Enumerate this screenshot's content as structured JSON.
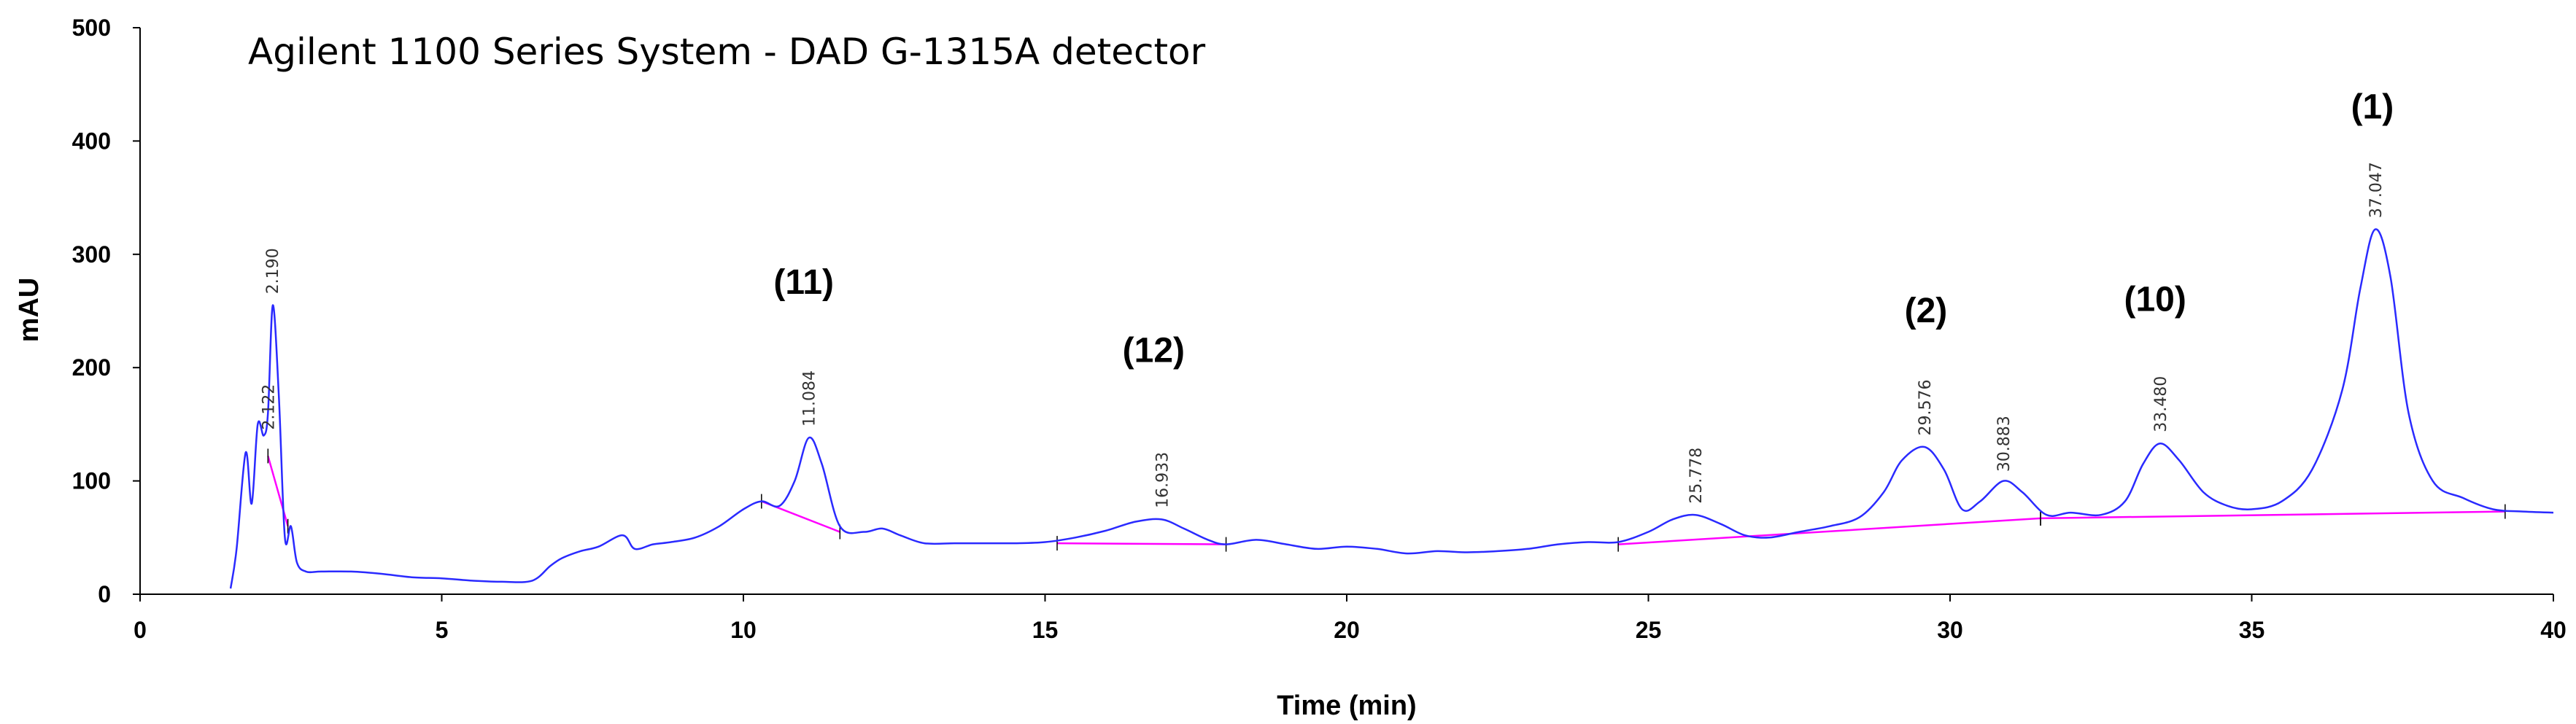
{
  "chart_data": {
    "type": "line",
    "title": "Agilent 1100 Series System  - DAD G-1315A detector",
    "xlabel": "Time (min)",
    "ylabel": "mAU",
    "xlim": [
      0,
      40
    ],
    "ylim": [
      0,
      500
    ],
    "x_ticks": [
      0,
      5,
      10,
      15,
      20,
      25,
      30,
      35,
      40
    ],
    "y_ticks": [
      0,
      100,
      200,
      300,
      400,
      500
    ],
    "grid": false,
    "colors": {
      "trace": "#2a2aff",
      "baseline": "#ff00ff"
    },
    "series": [
      {
        "x": [
          1.5,
          1.6,
          1.75,
          1.85,
          1.95,
          2.05,
          2.12,
          2.2,
          2.3,
          2.4,
          2.5,
          2.6,
          2.75,
          3.0,
          3.5,
          4.0,
          4.5,
          5.0,
          5.5,
          6.0,
          6.5,
          6.8,
          7.0,
          7.3,
          7.6,
          8.0,
          8.2,
          8.5,
          8.8,
          9.2,
          9.6,
          10.0,
          10.3,
          10.6,
          10.85,
          11.084,
          11.3,
          11.6,
          12.0,
          12.3,
          12.6,
          13.0,
          13.5,
          14.0,
          14.5,
          15.0,
          15.5,
          16.0,
          16.5,
          16.933,
          17.3,
          17.7,
          18.0,
          18.5,
          19.0,
          19.5,
          20.0,
          20.5,
          21.0,
          21.5,
          22.0,
          22.5,
          23.0,
          23.5,
          24.0,
          24.5,
          25.0,
          25.4,
          25.778,
          26.2,
          26.6,
          27.0,
          27.5,
          28.0,
          28.5,
          28.9,
          29.2,
          29.576,
          29.9,
          30.2,
          30.5,
          30.883,
          31.2,
          31.6,
          32.0,
          32.5,
          32.9,
          33.2,
          33.48,
          33.8,
          34.2,
          34.6,
          35.0,
          35.5,
          36.0,
          36.5,
          36.8,
          37.047,
          37.3,
          37.6,
          38.0,
          38.5,
          39.0,
          39.5,
          40.0
        ],
        "values": [
          5,
          40,
          125,
          80,
          150,
          140,
          160,
          255,
          175,
          50,
          60,
          28,
          20,
          20,
          20,
          18,
          15,
          14,
          12,
          11,
          12,
          25,
          32,
          38,
          42,
          52,
          40,
          44,
          46,
          50,
          60,
          75,
          82,
          78,
          100,
          138,
          115,
          60,
          55,
          58,
          52,
          45,
          45,
          45,
          45,
          46,
          50,
          56,
          64,
          66,
          58,
          48,
          44,
          48,
          44,
          40,
          42,
          40,
          36,
          38,
          37,
          38,
          40,
          44,
          46,
          46,
          55,
          66,
          70,
          62,
          52,
          50,
          55,
          60,
          68,
          90,
          118,
          130,
          110,
          75,
          82,
          100,
          90,
          70,
          72,
          70,
          82,
          115,
          133,
          118,
          90,
          78,
          75,
          82,
          110,
          180,
          270,
          322,
          280,
          160,
          100,
          85,
          75,
          73,
          72
        ]
      }
    ],
    "baselines": [
      {
        "x": [
          2.12,
          2.45
        ],
        "values": [
          122,
          60
        ]
      },
      {
        "x": [
          10.3,
          11.6
        ],
        "values": [
          82,
          55
        ]
      },
      {
        "x": [
          15.2,
          18.0
        ],
        "values": [
          45,
          44
        ]
      },
      {
        "x": [
          24.5,
          31.5
        ],
        "values": [
          44,
          67
        ]
      },
      {
        "x": [
          31.5,
          39.2
        ],
        "values": [
          67,
          73
        ]
      }
    ],
    "rt_labels": [
      "2.122",
      "2.190",
      "11.084",
      "16.933",
      "25.778",
      "29.576",
      "30.883",
      "33.480",
      "37.047"
    ],
    "rt_positions": [
      {
        "x": 2.122,
        "y": 145
      },
      {
        "x": 2.19,
        "y": 265
      },
      {
        "x": 11.084,
        "y": 148
      },
      {
        "x": 16.933,
        "y": 76
      },
      {
        "x": 25.778,
        "y": 80
      },
      {
        "x": 29.576,
        "y": 140
      },
      {
        "x": 30.883,
        "y": 108
      },
      {
        "x": 33.48,
        "y": 143
      },
      {
        "x": 37.047,
        "y": 332
      }
    ],
    "annotations": [
      {
        "label": "(11)",
        "x": 11.0,
        "y": 265
      },
      {
        "label": "(12)",
        "x": 16.8,
        "y": 205
      },
      {
        "label": "(2)",
        "x": 29.6,
        "y": 240
      },
      {
        "label": "(10)",
        "x": 33.4,
        "y": 250
      },
      {
        "label": "(1)",
        "x": 37.0,
        "y": 420
      }
    ]
  }
}
